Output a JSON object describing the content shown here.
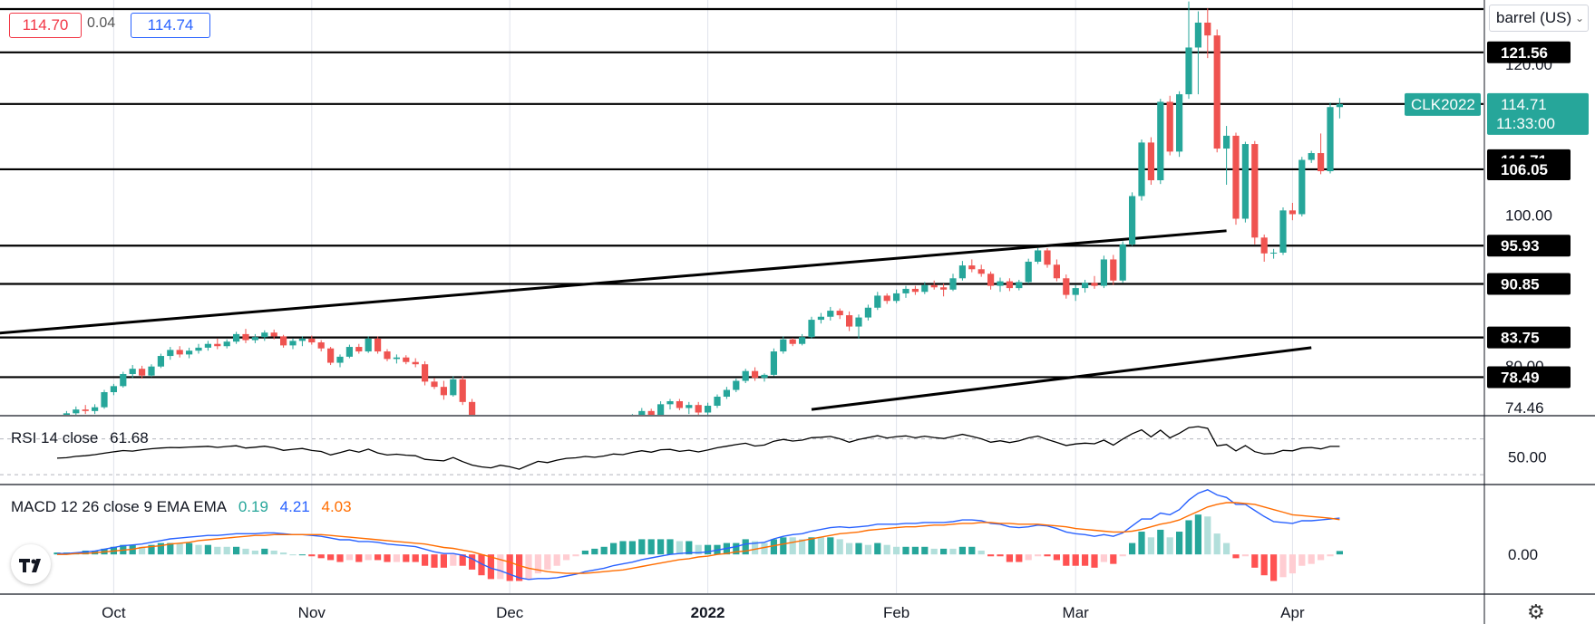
{
  "header": {
    "bid": "114.70",
    "spread": "0.04",
    "ask": "114.74",
    "unit_selector": "barrel (US)"
  },
  "colors": {
    "up": "#26a69a",
    "up_fill": "#26a69a",
    "down": "#ef5350",
    "grid": "#e0e3eb",
    "line": "#000000",
    "symbol_badge": "#26a69a",
    "rsi_line": "#000000",
    "macd_line": "#2962ff",
    "signal_line": "#ff6d00",
    "hist_up_strong": "#26a69a",
    "hist_up_weak": "#b2dfdb",
    "hist_down_strong": "#ff5252",
    "hist_down_weak": "#ffcdd2"
  },
  "chart_data": {
    "type": "candlestick",
    "symbol": "CLK2022",
    "last_price": "114.71",
    "countdown": "11:33:00",
    "price_axis": {
      "min": 73.5,
      "max": 128.5,
      "visible_ticks": [
        "120.00",
        "100.00",
        "80.00",
        "74.46"
      ]
    },
    "time_axis": {
      "ticks": [
        "Oct",
        "Nov",
        "Dec",
        "2022",
        "Feb",
        "Mar",
        "Apr"
      ],
      "tick_index": [
        6,
        27,
        48,
        69,
        89,
        108,
        131
      ]
    },
    "horizontal_levels": [
      "121.56",
      "114.71",
      "106.05",
      "95.93",
      "90.85",
      "83.75",
      "78.49"
    ],
    "top_level": 127.3,
    "trendlines": [
      {
        "from": {
          "i": -16,
          "price": 83.3
        },
        "to": {
          "i": 124,
          "price": 97.9
        }
      },
      {
        "from": {
          "i": 80,
          "price": 74.2
        },
        "to": {
          "i": 133,
          "price": 82.4
        }
      }
    ],
    "candles": [
      [
        72.0,
        73.2,
        71.8,
        73.0
      ],
      [
        73.0,
        74.0,
        72.6,
        73.7
      ],
      [
        73.7,
        74.6,
        73.2,
        74.2
      ],
      [
        74.2,
        74.8,
        73.6,
        74.0
      ],
      [
        74.0,
        74.9,
        73.6,
        74.5
      ],
      [
        74.5,
        76.8,
        74.3,
        76.5
      ],
      [
        76.5,
        77.6,
        76.1,
        77.3
      ],
      [
        77.3,
        79.2,
        77.1,
        78.9
      ],
      [
        78.9,
        80.1,
        78.4,
        79.6
      ],
      [
        79.6,
        80.0,
        78.3,
        78.7
      ],
      [
        78.7,
        80.2,
        78.5,
        79.9
      ],
      [
        79.9,
        81.6,
        79.7,
        81.3
      ],
      [
        81.3,
        82.5,
        80.8,
        82.1
      ],
      [
        82.1,
        82.6,
        81.1,
        81.5
      ],
      [
        81.5,
        82.4,
        81.0,
        82.0
      ],
      [
        82.0,
        82.9,
        81.6,
        82.4
      ],
      [
        82.4,
        83.3,
        82.0,
        82.9
      ],
      [
        82.9,
        83.6,
        82.2,
        82.6
      ],
      [
        82.6,
        83.5,
        82.3,
        83.2
      ],
      [
        83.2,
        84.5,
        82.9,
        84.2
      ],
      [
        84.2,
        84.9,
        83.0,
        83.4
      ],
      [
        83.4,
        84.2,
        83.0,
        83.8
      ],
      [
        83.8,
        84.7,
        83.3,
        84.4
      ],
      [
        84.4,
        84.8,
        83.5,
        83.9
      ],
      [
        83.9,
        84.1,
        82.4,
        82.7
      ],
      [
        82.7,
        83.6,
        82.2,
        83.3
      ],
      [
        83.3,
        83.9,
        82.6,
        83.6
      ],
      [
        83.6,
        84.0,
        82.8,
        83.1
      ],
      [
        83.1,
        83.4,
        81.9,
        82.3
      ],
      [
        82.3,
        82.5,
        80.1,
        80.4
      ],
      [
        80.4,
        81.5,
        79.8,
        81.2
      ],
      [
        81.2,
        82.8,
        81.0,
        82.5
      ],
      [
        82.5,
        82.9,
        81.6,
        81.9
      ],
      [
        81.9,
        83.9,
        81.7,
        83.6
      ],
      [
        83.6,
        83.9,
        81.6,
        81.9
      ],
      [
        81.9,
        82.2,
        80.6,
        80.9
      ],
      [
        80.9,
        81.5,
        80.3,
        81.1
      ],
      [
        81.1,
        81.4,
        80.2,
        80.5
      ],
      [
        80.5,
        81.0,
        79.8,
        80.2
      ],
      [
        80.2,
        80.6,
        77.4,
        77.9
      ],
      [
        77.9,
        78.4,
        76.9,
        77.2
      ],
      [
        77.2,
        78.0,
        75.5,
        76.1
      ],
      [
        76.1,
        78.6,
        75.9,
        78.2
      ],
      [
        78.2,
        78.6,
        74.8,
        75.2
      ],
      [
        75.2,
        75.6,
        70.5,
        70.9
      ],
      [
        70.9,
        71.8,
        67.2,
        67.6
      ],
      [
        67.6,
        68.6,
        66.1,
        66.7
      ],
      [
        66.7,
        68.2,
        64.9,
        67.8
      ],
      [
        67.8,
        68.9,
        66.1,
        66.6
      ],
      [
        66.6,
        67.3,
        64.2,
        64.6
      ],
      [
        64.6,
        66.5,
        64.1,
        66.1
      ],
      [
        66.1,
        68.7,
        65.9,
        68.3
      ],
      [
        68.3,
        69.4,
        67.2,
        67.7
      ],
      [
        67.7,
        69.3,
        67.4,
        68.9
      ],
      [
        68.9,
        70.1,
        68.2,
        69.7
      ],
      [
        69.7,
        70.5,
        69.0,
        70.0
      ],
      [
        70.0,
        71.2,
        69.5,
        70.8
      ],
      [
        70.8,
        71.6,
        70.0,
        70.4
      ],
      [
        70.4,
        71.3,
        69.8,
        71.0
      ],
      [
        71.0,
        72.4,
        70.7,
        72.1
      ],
      [
        72.1,
        72.9,
        71.4,
        71.7
      ],
      [
        71.7,
        73.6,
        71.6,
        73.3
      ],
      [
        73.3,
        74.4,
        72.7,
        74.0
      ],
      [
        74.0,
        74.3,
        73.1,
        73.4
      ],
      [
        73.4,
        75.3,
        73.2,
        74.9
      ],
      [
        74.9,
        75.6,
        74.2,
        75.3
      ],
      [
        75.3,
        75.6,
        74.1,
        74.4
      ],
      [
        74.4,
        75.2,
        73.6,
        74.8
      ],
      [
        74.8,
        75.2,
        73.4,
        73.8
      ],
      [
        73.8,
        75.1,
        73.5,
        74.7
      ],
      [
        74.7,
        76.2,
        74.4,
        75.9
      ],
      [
        75.9,
        77.2,
        75.6,
        76.8
      ],
      [
        76.8,
        78.3,
        76.5,
        78.0
      ],
      [
        78.0,
        79.6,
        77.7,
        79.3
      ],
      [
        79.3,
        79.8,
        78.0,
        78.4
      ],
      [
        78.4,
        79.0,
        77.9,
        78.8
      ],
      [
        78.8,
        82.3,
        78.6,
        81.9
      ],
      [
        81.9,
        83.9,
        81.6,
        83.5
      ],
      [
        83.5,
        83.7,
        82.6,
        82.9
      ],
      [
        82.9,
        84.2,
        82.7,
        83.8
      ],
      [
        83.8,
        86.5,
        83.6,
        86.1
      ],
      [
        86.1,
        87.0,
        85.6,
        86.5
      ],
      [
        86.5,
        87.8,
        86.0,
        87.3
      ],
      [
        87.3,
        87.6,
        86.2,
        86.7
      ],
      [
        86.7,
        87.2,
        84.6,
        85.2
      ],
      [
        85.2,
        86.8,
        83.6,
        86.4
      ],
      [
        86.4,
        88.1,
        86.0,
        87.7
      ],
      [
        87.7,
        89.8,
        87.4,
        89.3
      ],
      [
        89.3,
        89.6,
        88.2,
        88.6
      ],
      [
        88.6,
        90.1,
        88.3,
        89.6
      ],
      [
        89.6,
        90.6,
        89.0,
        90.2
      ],
      [
        90.2,
        90.6,
        89.4,
        89.8
      ],
      [
        89.8,
        91.1,
        89.5,
        90.7
      ],
      [
        90.7,
        91.3,
        90.1,
        90.4
      ],
      [
        90.4,
        90.9,
        89.2,
        90.1
      ],
      [
        90.1,
        92.2,
        89.9,
        91.6
      ],
      [
        91.6,
        93.9,
        91.3,
        93.3
      ],
      [
        93.3,
        94.1,
        92.4,
        92.8
      ],
      [
        92.8,
        93.4,
        91.8,
        92.2
      ],
      [
        92.2,
        92.5,
        90.1,
        90.6
      ],
      [
        90.6,
        91.7,
        89.8,
        91.2
      ],
      [
        91.2,
        91.6,
        89.9,
        90.3
      ],
      [
        90.3,
        91.4,
        90.0,
        91.1
      ],
      [
        91.1,
        94.2,
        90.9,
        93.8
      ],
      [
        93.8,
        95.6,
        93.5,
        95.3
      ],
      [
        95.3,
        95.6,
        93.0,
        93.4
      ],
      [
        93.4,
        94.1,
        91.2,
        91.6
      ],
      [
        91.6,
        92.1,
        88.9,
        89.4
      ],
      [
        89.4,
        90.7,
        88.6,
        90.3
      ],
      [
        90.3,
        91.4,
        89.7,
        91.0
      ],
      [
        91.0,
        91.9,
        90.2,
        90.6
      ],
      [
        90.6,
        94.6,
        90.3,
        94.1
      ],
      [
        94.1,
        94.7,
        90.7,
        91.3
      ],
      [
        91.3,
        96.5,
        91.0,
        96.1
      ],
      [
        96.1,
        103.0,
        95.9,
        102.5
      ],
      [
        102.5,
        110.0,
        101.9,
        109.6
      ],
      [
        109.6,
        110.3,
        104.0,
        104.6
      ],
      [
        104.6,
        115.4,
        104.1,
        115.0
      ],
      [
        115.0,
        115.8,
        107.9,
        108.4
      ],
      [
        108.4,
        116.4,
        107.7,
        116.0
      ],
      [
        116.0,
        128.3,
        115.4,
        122.2
      ],
      [
        122.2,
        127.0,
        116.0,
        125.5
      ],
      [
        125.5,
        127.4,
        120.8,
        123.8
      ],
      [
        123.8,
        124.6,
        108.3,
        108.8
      ],
      [
        108.8,
        111.8,
        104.0,
        110.5
      ],
      [
        110.5,
        110.9,
        98.7,
        99.5
      ],
      [
        99.5,
        109.7,
        99.0,
        109.4
      ],
      [
        109.4,
        109.8,
        96.1,
        97.0
      ],
      [
        97.0,
        97.4,
        93.8,
        94.9
      ],
      [
        94.9,
        95.5,
        94.2,
        95.0
      ],
      [
        95.0,
        101.0,
        94.7,
        100.6
      ],
      [
        100.6,
        101.6,
        99.3,
        100.1
      ],
      [
        100.1,
        107.7,
        99.8,
        107.3
      ],
      [
        107.3,
        108.5,
        106.9,
        108.2
      ],
      [
        108.2,
        110.8,
        105.4,
        105.8
      ],
      [
        105.8,
        114.9,
        105.5,
        114.3
      ],
      [
        114.3,
        115.5,
        112.8,
        114.71
      ]
    ]
  },
  "rsi": {
    "legend_name": "RSI 14 close",
    "legend_value": "61.68",
    "axis_label": "50.00",
    "values": [
      48.5,
      49.0,
      50.5,
      51.2,
      52.4,
      54.1,
      55.6,
      57.0,
      56.4,
      57.9,
      59.0,
      59.8,
      60.4,
      60.2,
      60.9,
      61.3,
      61.8,
      60.5,
      61.6,
      62.4,
      59.8,
      60.7,
      61.9,
      60.1,
      57.2,
      58.4,
      59.3,
      57.1,
      56.0,
      52.1,
      54.8,
      57.6,
      55.3,
      58.6,
      54.4,
      52.0,
      52.9,
      51.8,
      51.2,
      47.2,
      46.3,
      45.4,
      49.2,
      44.6,
      40.8,
      38.7,
      37.6,
      40.6,
      38.9,
      36.1,
      40.7,
      44.9,
      43.5,
      46.2,
      48.3,
      48.9,
      50.4,
      49.5,
      50.9,
      53.1,
      52.4,
      55.0,
      56.8,
      55.2,
      57.9,
      58.3,
      56.1,
      57.4,
      55.5,
      57.6,
      60.1,
      61.9,
      63.7,
      65.2,
      62.1,
      63.2,
      67.4,
      69.5,
      67.6,
      68.6,
      71.4,
      71.9,
      72.8,
      70.2,
      66.3,
      69.5,
      71.5,
      73.6,
      71.1,
      72.6,
      73.4,
      71.3,
      73.1,
      71.6,
      70.5,
      72.8,
      75.1,
      72.8,
      70.2,
      66.3,
      67.9,
      65.9,
      67.8,
      71.2,
      73.2,
      69.4,
      66.1,
      62.7,
      64.4,
      65.3,
      64.6,
      68.6,
      63.1,
      69.9,
      75.8,
      80.2,
      72.3,
      79.8,
      71.2,
      76.4,
      82.6,
      83.9,
      81.8,
      62.3,
      63.8,
      56.6,
      62.6,
      55.8,
      53.2,
      53.9,
      57.2,
      56.7,
      59.8,
      60.4,
      58.8,
      61.7,
      61.68
    ]
  },
  "macd": {
    "legend_name": "MACD 12 26 close 9 EMA EMA",
    "histogram_value": "0.19",
    "macd_value": "4.21",
    "signal_value": "4.03",
    "axis_label": "0.00",
    "axis_range": [
      -4.5,
      8.0
    ],
    "macd": [
      0.1,
      0.1,
      0.2,
      0.3,
      0.4,
      0.6,
      0.8,
      1.0,
      1.1,
      1.2,
      1.4,
      1.6,
      1.8,
      1.9,
      2.0,
      2.1,
      2.2,
      2.2,
      2.3,
      2.4,
      2.4,
      2.4,
      2.5,
      2.5,
      2.4,
      2.3,
      2.3,
      2.2,
      2.1,
      1.9,
      1.7,
      1.7,
      1.5,
      1.5,
      1.4,
      1.2,
      1.1,
      1.0,
      0.9,
      0.6,
      0.3,
      0.1,
      0.1,
      -0.1,
      -0.5,
      -1.1,
      -1.6,
      -1.9,
      -2.3,
      -2.7,
      -2.9,
      -2.8,
      -2.8,
      -2.7,
      -2.5,
      -2.3,
      -2.0,
      -1.8,
      -1.6,
      -1.3,
      -1.1,
      -0.9,
      -0.6,
      -0.4,
      -0.2,
      0.0,
      0.1,
      0.2,
      0.2,
      0.3,
      0.5,
      0.7,
      0.9,
      1.2,
      1.3,
      1.4,
      1.8,
      2.1,
      2.3,
      2.4,
      2.7,
      2.9,
      3.1,
      3.2,
      3.1,
      3.2,
      3.3,
      3.5,
      3.5,
      3.5,
      3.6,
      3.6,
      3.7,
      3.7,
      3.7,
      3.8,
      4.0,
      4.0,
      3.9,
      3.6,
      3.5,
      3.2,
      3.1,
      3.2,
      3.4,
      3.3,
      3.0,
      2.6,
      2.4,
      2.3,
      2.1,
      2.3,
      2.1,
      2.5,
      3.3,
      4.1,
      4.1,
      4.8,
      4.6,
      5.2,
      6.3,
      7.1,
      7.5,
      6.9,
      6.6,
      5.8,
      5.8,
      5.1,
      4.4,
      3.8,
      3.7,
      3.6,
      3.9,
      3.9,
      4.0,
      4.1,
      4.21
    ],
    "signal": [
      0.0,
      0.0,
      0.1,
      0.1,
      0.2,
      0.3,
      0.4,
      0.5,
      0.6,
      0.8,
      0.9,
      1.0,
      1.2,
      1.3,
      1.4,
      1.6,
      1.7,
      1.8,
      1.9,
      2.0,
      2.1,
      2.2,
      2.2,
      2.3,
      2.3,
      2.3,
      2.3,
      2.3,
      2.3,
      2.2,
      2.1,
      2.0,
      1.9,
      1.8,
      1.7,
      1.6,
      1.5,
      1.4,
      1.3,
      1.2,
      1.0,
      0.8,
      0.7,
      0.5,
      0.3,
      0.0,
      -0.3,
      -0.6,
      -0.9,
      -1.3,
      -1.6,
      -1.8,
      -2.0,
      -2.1,
      -2.2,
      -2.2,
      -2.2,
      -2.1,
      -2.0,
      -1.9,
      -1.8,
      -1.6,
      -1.4,
      -1.2,
      -1.0,
      -0.8,
      -0.6,
      -0.5,
      -0.3,
      -0.2,
      0.0,
      0.1,
      0.3,
      0.4,
      0.6,
      0.8,
      1.0,
      1.2,
      1.4,
      1.6,
      1.8,
      2.0,
      2.2,
      2.4,
      2.5,
      2.6,
      2.8,
      2.9,
      3.0,
      3.1,
      3.2,
      3.2,
      3.3,
      3.4,
      3.4,
      3.5,
      3.6,
      3.6,
      3.7,
      3.7,
      3.6,
      3.6,
      3.5,
      3.5,
      3.5,
      3.4,
      3.3,
      3.2,
      3.0,
      2.9,
      2.8,
      2.7,
      2.6,
      2.6,
      2.7,
      2.9,
      3.2,
      3.5,
      3.7,
      4.0,
      4.5,
      5.0,
      5.5,
      5.8,
      6.0,
      6.0,
      5.9,
      5.8,
      5.5,
      5.2,
      4.9,
      4.6,
      4.5,
      4.4,
      4.3,
      4.2,
      4.03
    ]
  },
  "ui": {
    "logo_icon": "tradingview-logo-icon",
    "settings_icon": "gear-icon",
    "gear_glyph": "⚙",
    "chevron_glyph": "⌄"
  }
}
